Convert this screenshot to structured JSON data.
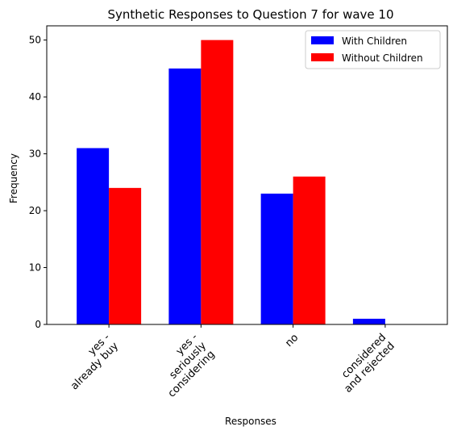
{
  "chart_data": {
    "type": "bar",
    "title": "Synthetic Responses to Question 7 for wave 10",
    "xlabel": "Responses",
    "ylabel": "Frequency",
    "categories": [
      [
        "yes -",
        "already buy"
      ],
      [
        "yes -",
        "seriously",
        "considering"
      ],
      [
        "no"
      ],
      [
        "considered",
        "and rejected"
      ]
    ],
    "series": [
      {
        "name": "With Children",
        "color": "#0000ff",
        "values": [
          31,
          45,
          23,
          1
        ]
      },
      {
        "name": "Without Children",
        "color": "#ff0000",
        "values": [
          24,
          50,
          26,
          0
        ]
      }
    ],
    "ylim": [
      0,
      52.5
    ],
    "yticks": [
      0,
      10,
      20,
      30,
      40,
      50
    ],
    "legend": "top-right",
    "grid": false
  }
}
